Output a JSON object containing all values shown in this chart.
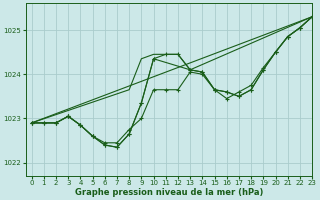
{
  "xlabel": "Graphe pression niveau de la mer (hPa)",
  "xlim": [
    -0.5,
    23
  ],
  "ylim": [
    1021.7,
    1025.6
  ],
  "yticks": [
    1022,
    1023,
    1024,
    1025
  ],
  "xticks": [
    0,
    1,
    2,
    3,
    4,
    5,
    6,
    7,
    8,
    9,
    10,
    11,
    12,
    13,
    14,
    15,
    16,
    17,
    18,
    19,
    20,
    21,
    22,
    23
  ],
  "bg_color": "#cce8e8",
  "grid_color": "#aacccc",
  "line_color": "#1a5e1a",
  "line1_x": [
    0,
    1,
    2,
    3,
    4,
    5,
    6,
    7,
    8,
    9,
    10,
    11,
    12,
    13,
    14,
    15,
    16,
    17,
    18,
    19,
    20,
    21,
    22,
    23
  ],
  "line1_y": [
    1022.9,
    1022.9,
    1022.9,
    1023.05,
    1022.85,
    1022.6,
    1022.45,
    1022.45,
    1022.75,
    1023.0,
    1023.65,
    1023.65,
    1023.65,
    1024.05,
    1024.0,
    1023.65,
    1023.45,
    1023.6,
    1023.75,
    1024.15,
    1024.5,
    1024.85,
    1025.05,
    1025.3
  ],
  "line2_x": [
    0,
    1,
    2,
    3,
    4,
    5,
    6,
    7,
    8,
    9,
    10,
    11,
    12,
    13,
    14,
    15,
    16,
    17,
    18,
    19,
    20,
    21,
    22,
    23
  ],
  "line2_y": [
    1022.9,
    1022.9,
    1022.9,
    1023.05,
    1022.85,
    1022.6,
    1022.4,
    1022.35,
    1022.65,
    1023.35,
    1024.35,
    1024.45,
    1024.45,
    1024.1,
    1024.05,
    1023.65,
    1023.6,
    1023.5,
    1023.65,
    1024.1,
    1024.5,
    1024.85,
    1025.05,
    1025.3
  ],
  "line3_x": [
    0,
    2,
    3,
    4,
    5,
    6,
    7,
    8,
    9,
    10,
    13,
    14,
    15,
    16,
    17,
    18,
    19,
    20,
    21,
    22,
    23
  ],
  "line3_y": [
    1022.9,
    1022.9,
    1023.05,
    1022.85,
    1022.6,
    1022.4,
    1022.35,
    1022.65,
    1023.35,
    1024.35,
    1024.1,
    1024.05,
    1023.65,
    1023.6,
    1023.5,
    1023.65,
    1024.1,
    1024.5,
    1024.85,
    1025.05,
    1025.3
  ],
  "line4_x": [
    0,
    23
  ],
  "line4_y": [
    1022.9,
    1025.3
  ],
  "line5_x": [
    0,
    8,
    9,
    10,
    11,
    12,
    13,
    23
  ],
  "line5_y": [
    1022.9,
    1023.65,
    1024.35,
    1024.45,
    1024.45,
    1024.45,
    1024.1,
    1025.3
  ]
}
